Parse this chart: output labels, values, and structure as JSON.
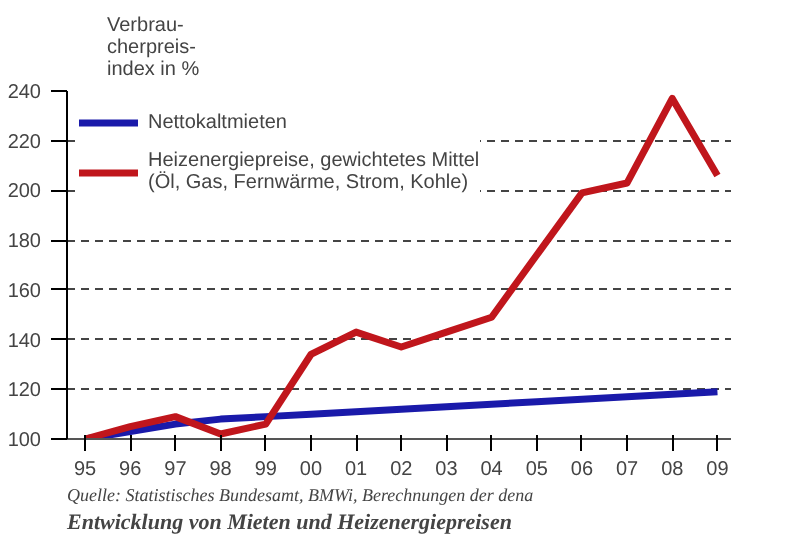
{
  "chart_data": {
    "type": "line",
    "title": "Entwicklung von Mieten und Heizenergiepreisen",
    "ylabel": "Verbrau-\ncherpreis-\nindex in %",
    "annotations": [
      "Quelle: Statistisches Bundesamt, BMWi, Berechnungen der dena"
    ],
    "categories": [
      "95",
      "96",
      "97",
      "98",
      "99",
      "00",
      "01",
      "02",
      "03",
      "04",
      "05",
      "06",
      "07",
      "08",
      "09"
    ],
    "series": [
      {
        "name": "Nettokaltmieten",
        "color": "#1a1aaa",
        "values": [
          100,
          103,
          106,
          108,
          109,
          110,
          111,
          112,
          113,
          114,
          115,
          116,
          117,
          118,
          119
        ]
      },
      {
        "name": "Heizenergiepreise, gewichtetes Mittel\n(Öl, Gas, Fernwärme, Strom, Kohle)",
        "color": "#c0161c",
        "values": [
          100,
          105,
          109,
          102,
          106,
          134,
          143,
          137,
          143,
          149,
          174,
          199,
          203,
          237,
          206
        ]
      }
    ],
    "ylim": [
      100,
      240
    ],
    "yticks": [
      100,
      120,
      140,
      160,
      180,
      200,
      220,
      240
    ],
    "grid": "y",
    "legend": "top left",
    "line_style": "solid",
    "marker": "none"
  }
}
